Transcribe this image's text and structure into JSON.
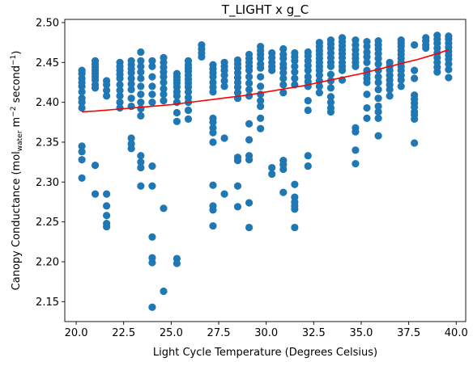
{
  "chart_data": {
    "type": "scatter",
    "title": "T_LIGHT x g_C",
    "xlabel": "Light Cycle Temperature (Degrees Celsius)",
    "ylabel": "Canopy Conductance (mol_water m^-2 second^-1)",
    "ylabel_parts": {
      "lead": "Canopy Conductance (mol",
      "sub": "water",
      "mid1": " m",
      "sup1": "−2",
      "mid2": " second",
      "sup2": "−1",
      "tail": ")"
    },
    "xlim": [
      19.4,
      40.5
    ],
    "ylim": [
      2.125,
      2.504
    ],
    "xticks": [
      20.0,
      22.5,
      25.0,
      27.5,
      30.0,
      32.5,
      35.0,
      37.5,
      40.0
    ],
    "xtick_labels": [
      "20.0",
      "22.5",
      "25.0",
      "27.5",
      "30.0",
      "32.5",
      "35.0",
      "37.5",
      "40.0"
    ],
    "yticks": [
      2.15,
      2.2,
      2.25,
      2.3,
      2.35,
      2.4,
      2.45,
      2.5
    ],
    "ytick_labels": [
      "2.15",
      "2.20",
      "2.25",
      "2.30",
      "2.35",
      "2.40",
      "2.45",
      "2.50"
    ],
    "grid": false,
    "legend": "none",
    "colors": {
      "points": "#1f77b4",
      "trend": "#ff0000",
      "axes": "#000000",
      "background": "#ffffff"
    },
    "points": [
      [
        20.3,
        2.44
      ],
      [
        20.3,
        2.436
      ],
      [
        20.3,
        2.43
      ],
      [
        20.3,
        2.425
      ],
      [
        20.3,
        2.42
      ],
      [
        20.3,
        2.413
      ],
      [
        20.3,
        2.405
      ],
      [
        20.3,
        2.4
      ],
      [
        20.3,
        2.393
      ],
      [
        20.3,
        2.345
      ],
      [
        20.3,
        2.338
      ],
      [
        20.3,
        2.328
      ],
      [
        20.3,
        2.305
      ],
      [
        21.0,
        2.452
      ],
      [
        21.0,
        2.448
      ],
      [
        21.0,
        2.444
      ],
      [
        21.0,
        2.44
      ],
      [
        21.0,
        2.436
      ],
      [
        21.0,
        2.432
      ],
      [
        21.0,
        2.428
      ],
      [
        21.0,
        2.422
      ],
      [
        21.0,
        2.418
      ],
      [
        21.0,
        2.321
      ],
      [
        21.0,
        2.285
      ],
      [
        21.6,
        2.427
      ],
      [
        21.6,
        2.422
      ],
      [
        21.6,
        2.415
      ],
      [
        21.6,
        2.408
      ],
      [
        21.6,
        2.285
      ],
      [
        21.6,
        2.27
      ],
      [
        21.6,
        2.258
      ],
      [
        21.6,
        2.248
      ],
      [
        21.6,
        2.244
      ],
      [
        22.3,
        2.45
      ],
      [
        22.3,
        2.445
      ],
      [
        22.3,
        2.44
      ],
      [
        22.3,
        2.435
      ],
      [
        22.3,
        2.43
      ],
      [
        22.3,
        2.422
      ],
      [
        22.3,
        2.415
      ],
      [
        22.3,
        2.408
      ],
      [
        22.3,
        2.4
      ],
      [
        22.3,
        2.393
      ],
      [
        22.9,
        2.452
      ],
      [
        22.9,
        2.447
      ],
      [
        22.9,
        2.442
      ],
      [
        22.9,
        2.437
      ],
      [
        22.9,
        2.43
      ],
      [
        22.9,
        2.423
      ],
      [
        22.9,
        2.416
      ],
      [
        22.9,
        2.405
      ],
      [
        22.9,
        2.395
      ],
      [
        22.9,
        2.355
      ],
      [
        22.9,
        2.348
      ],
      [
        22.9,
        2.342
      ],
      [
        23.4,
        2.463
      ],
      [
        23.4,
        2.452
      ],
      [
        23.4,
        2.445
      ],
      [
        23.4,
        2.438
      ],
      [
        23.4,
        2.43
      ],
      [
        23.4,
        2.42
      ],
      [
        23.4,
        2.41
      ],
      [
        23.4,
        2.4
      ],
      [
        23.4,
        2.392
      ],
      [
        23.4,
        2.383
      ],
      [
        23.4,
        2.333
      ],
      [
        23.4,
        2.325
      ],
      [
        23.4,
        2.318
      ],
      [
        23.4,
        2.295
      ],
      [
        24.0,
        2.452
      ],
      [
        24.0,
        2.445
      ],
      [
        24.0,
        2.432
      ],
      [
        24.0,
        2.42
      ],
      [
        24.0,
        2.41
      ],
      [
        24.0,
        2.4
      ],
      [
        24.0,
        2.32
      ],
      [
        24.0,
        2.295
      ],
      [
        24.0,
        2.231
      ],
      [
        24.0,
        2.205
      ],
      [
        24.0,
        2.199
      ],
      [
        24.0,
        2.143
      ],
      [
        24.6,
        2.456
      ],
      [
        24.6,
        2.45
      ],
      [
        24.6,
        2.444
      ],
      [
        24.6,
        2.438
      ],
      [
        24.6,
        2.432
      ],
      [
        24.6,
        2.425
      ],
      [
        24.6,
        2.417
      ],
      [
        24.6,
        2.41
      ],
      [
        24.6,
        2.402
      ],
      [
        24.6,
        2.267
      ],
      [
        24.6,
        2.163
      ],
      [
        25.3,
        2.436
      ],
      [
        25.3,
        2.432
      ],
      [
        25.3,
        2.428
      ],
      [
        25.3,
        2.424
      ],
      [
        25.3,
        2.419
      ],
      [
        25.3,
        2.413
      ],
      [
        25.3,
        2.408
      ],
      [
        25.3,
        2.4
      ],
      [
        25.3,
        2.387
      ],
      [
        25.3,
        2.376
      ],
      [
        25.3,
        2.204
      ],
      [
        25.3,
        2.198
      ],
      [
        25.9,
        2.452
      ],
      [
        25.9,
        2.447
      ],
      [
        25.9,
        2.443
      ],
      [
        25.9,
        2.439
      ],
      [
        25.9,
        2.434
      ],
      [
        25.9,
        2.429
      ],
      [
        25.9,
        2.424
      ],
      [
        25.9,
        2.419
      ],
      [
        25.9,
        2.413
      ],
      [
        25.9,
        2.406
      ],
      [
        25.9,
        2.4
      ],
      [
        25.9,
        2.39
      ],
      [
        25.9,
        2.379
      ],
      [
        26.6,
        2.472
      ],
      [
        26.6,
        2.467
      ],
      [
        26.6,
        2.462
      ],
      [
        26.6,
        2.457
      ],
      [
        27.2,
        2.447
      ],
      [
        27.2,
        2.442
      ],
      [
        27.2,
        2.437
      ],
      [
        27.2,
        2.432
      ],
      [
        27.2,
        2.425
      ],
      [
        27.2,
        2.419
      ],
      [
        27.2,
        2.413
      ],
      [
        27.2,
        2.38
      ],
      [
        27.2,
        2.375
      ],
      [
        27.2,
        2.368
      ],
      [
        27.2,
        2.362
      ],
      [
        27.2,
        2.35
      ],
      [
        27.2,
        2.296
      ],
      [
        27.2,
        2.27
      ],
      [
        27.2,
        2.265
      ],
      [
        27.2,
        2.245
      ],
      [
        27.8,
        2.45
      ],
      [
        27.8,
        2.445
      ],
      [
        27.8,
        2.44
      ],
      [
        27.8,
        2.434
      ],
      [
        27.8,
        2.427
      ],
      [
        27.8,
        2.42
      ],
      [
        27.8,
        2.355
      ],
      [
        27.8,
        2.285
      ],
      [
        28.5,
        2.453
      ],
      [
        28.5,
        2.448
      ],
      [
        28.5,
        2.443
      ],
      [
        28.5,
        2.437
      ],
      [
        28.5,
        2.431
      ],
      [
        28.5,
        2.425
      ],
      [
        28.5,
        2.419
      ],
      [
        28.5,
        2.412
      ],
      [
        28.5,
        2.405
      ],
      [
        28.5,
        2.331
      ],
      [
        28.5,
        2.327
      ],
      [
        28.5,
        2.295
      ],
      [
        28.5,
        2.269
      ],
      [
        29.1,
        2.46
      ],
      [
        29.1,
        2.455
      ],
      [
        29.1,
        2.45
      ],
      [
        29.1,
        2.445
      ],
      [
        29.1,
        2.44
      ],
      [
        29.1,
        2.432
      ],
      [
        29.1,
        2.424
      ],
      [
        29.1,
        2.416
      ],
      [
        29.1,
        2.408
      ],
      [
        29.1,
        2.373
      ],
      [
        29.1,
        2.353
      ],
      [
        29.1,
        2.333
      ],
      [
        29.1,
        2.328
      ],
      [
        29.1,
        2.274
      ],
      [
        29.1,
        2.243
      ],
      [
        29.7,
        2.47
      ],
      [
        29.7,
        2.465
      ],
      [
        29.7,
        2.46
      ],
      [
        29.7,
        2.455
      ],
      [
        29.7,
        2.448
      ],
      [
        29.7,
        2.443
      ],
      [
        29.7,
        2.432
      ],
      [
        29.7,
        2.42
      ],
      [
        29.7,
        2.41
      ],
      [
        29.7,
        2.402
      ],
      [
        29.7,
        2.395
      ],
      [
        29.7,
        2.38
      ],
      [
        29.7,
        2.367
      ],
      [
        30.3,
        2.462
      ],
      [
        30.3,
        2.456
      ],
      [
        30.3,
        2.45
      ],
      [
        30.3,
        2.445
      ],
      [
        30.3,
        2.44
      ],
      [
        30.3,
        2.318
      ],
      [
        30.3,
        2.31
      ],
      [
        30.9,
        2.467
      ],
      [
        30.9,
        2.46
      ],
      [
        30.9,
        2.455
      ],
      [
        30.9,
        2.448
      ],
      [
        30.9,
        2.443
      ],
      [
        30.9,
        2.437
      ],
      [
        30.9,
        2.43
      ],
      [
        30.9,
        2.422
      ],
      [
        30.9,
        2.412
      ],
      [
        30.9,
        2.327
      ],
      [
        30.9,
        2.322
      ],
      [
        30.9,
        2.316
      ],
      [
        30.9,
        2.287
      ],
      [
        31.5,
        2.462
      ],
      [
        31.5,
        2.457
      ],
      [
        31.5,
        2.452
      ],
      [
        31.5,
        2.445
      ],
      [
        31.5,
        2.438
      ],
      [
        31.5,
        2.43
      ],
      [
        31.5,
        2.422
      ],
      [
        31.5,
        2.297
      ],
      [
        31.5,
        2.281
      ],
      [
        31.5,
        2.275
      ],
      [
        31.5,
        2.27
      ],
      [
        31.5,
        2.266
      ],
      [
        31.5,
        2.243
      ],
      [
        32.2,
        2.463
      ],
      [
        32.2,
        2.458
      ],
      [
        32.2,
        2.452
      ],
      [
        32.2,
        2.446
      ],
      [
        32.2,
        2.44
      ],
      [
        32.2,
        2.432
      ],
      [
        32.2,
        2.426
      ],
      [
        32.2,
        2.42
      ],
      [
        32.2,
        2.402
      ],
      [
        32.2,
        2.39
      ],
      [
        32.2,
        2.333
      ],
      [
        32.2,
        2.32
      ],
      [
        32.8,
        2.475
      ],
      [
        32.8,
        2.47
      ],
      [
        32.8,
        2.465
      ],
      [
        32.8,
        2.46
      ],
      [
        32.8,
        2.455
      ],
      [
        32.8,
        2.45
      ],
      [
        32.8,
        2.445
      ],
      [
        32.8,
        2.44
      ],
      [
        32.8,
        2.434
      ],
      [
        32.8,
        2.427
      ],
      [
        32.8,
        2.42
      ],
      [
        32.8,
        2.412
      ],
      [
        33.4,
        2.478
      ],
      [
        33.4,
        2.473
      ],
      [
        33.4,
        2.468
      ],
      [
        33.4,
        2.462
      ],
      [
        33.4,
        2.456
      ],
      [
        33.4,
        2.45
      ],
      [
        33.4,
        2.445
      ],
      [
        33.4,
        2.435
      ],
      [
        33.4,
        2.427
      ],
      [
        33.4,
        2.418
      ],
      [
        33.4,
        2.407
      ],
      [
        33.4,
        2.4
      ],
      [
        33.4,
        2.393
      ],
      [
        33.4,
        2.388
      ],
      [
        34.0,
        2.481
      ],
      [
        34.0,
        2.476
      ],
      [
        34.0,
        2.471
      ],
      [
        34.0,
        2.466
      ],
      [
        34.0,
        2.461
      ],
      [
        34.0,
        2.456
      ],
      [
        34.0,
        2.45
      ],
      [
        34.0,
        2.445
      ],
      [
        34.0,
        2.44
      ],
      [
        34.0,
        2.428
      ],
      [
        34.7,
        2.478
      ],
      [
        34.7,
        2.472
      ],
      [
        34.7,
        2.466
      ],
      [
        34.7,
        2.46
      ],
      [
        34.7,
        2.455
      ],
      [
        34.7,
        2.45
      ],
      [
        34.7,
        2.445
      ],
      [
        34.7,
        2.368
      ],
      [
        34.7,
        2.363
      ],
      [
        34.7,
        2.34
      ],
      [
        34.7,
        2.323
      ],
      [
        35.3,
        2.476
      ],
      [
        35.3,
        2.47
      ],
      [
        35.3,
        2.463
      ],
      [
        35.3,
        2.457
      ],
      [
        35.3,
        2.45
      ],
      [
        35.3,
        2.44
      ],
      [
        35.3,
        2.435
      ],
      [
        35.3,
        2.43
      ],
      [
        35.3,
        2.425
      ],
      [
        35.3,
        2.41
      ],
      [
        35.3,
        2.393
      ],
      [
        35.3,
        2.38
      ],
      [
        35.9,
        2.477
      ],
      [
        35.9,
        2.472
      ],
      [
        35.9,
        2.467
      ],
      [
        35.9,
        2.461
      ],
      [
        35.9,
        2.455
      ],
      [
        35.9,
        2.448
      ],
      [
        35.9,
        2.44
      ],
      [
        35.9,
        2.432
      ],
      [
        35.9,
        2.425
      ],
      [
        35.9,
        2.416
      ],
      [
        35.9,
        2.405
      ],
      [
        35.9,
        2.395
      ],
      [
        35.9,
        2.388
      ],
      [
        35.9,
        2.38
      ],
      [
        35.9,
        2.358
      ],
      [
        36.5,
        2.45
      ],
      [
        36.5,
        2.445
      ],
      [
        36.5,
        2.44
      ],
      [
        36.5,
        2.434
      ],
      [
        36.5,
        2.428
      ],
      [
        36.5,
        2.422
      ],
      [
        36.5,
        2.416
      ],
      [
        36.5,
        2.408
      ],
      [
        37.1,
        2.478
      ],
      [
        37.1,
        2.474
      ],
      [
        37.1,
        2.47
      ],
      [
        37.1,
        2.465
      ],
      [
        37.1,
        2.46
      ],
      [
        37.1,
        2.455
      ],
      [
        37.1,
        2.45
      ],
      [
        37.1,
        2.445
      ],
      [
        37.1,
        2.44
      ],
      [
        37.1,
        2.434
      ],
      [
        37.1,
        2.428
      ],
      [
        37.1,
        2.42
      ],
      [
        37.8,
        2.472
      ],
      [
        37.8,
        2.44
      ],
      [
        37.8,
        2.43
      ],
      [
        37.8,
        2.409
      ],
      [
        37.8,
        2.404
      ],
      [
        37.8,
        2.399
      ],
      [
        37.8,
        2.394
      ],
      [
        37.8,
        2.388
      ],
      [
        37.8,
        2.384
      ],
      [
        37.8,
        2.379
      ],
      [
        37.8,
        2.349
      ],
      [
        38.4,
        2.481
      ],
      [
        38.4,
        2.477
      ],
      [
        38.4,
        2.472
      ],
      [
        38.4,
        2.468
      ],
      [
        39.0,
        2.484
      ],
      [
        39.0,
        2.479
      ],
      [
        39.0,
        2.474
      ],
      [
        39.0,
        2.468
      ],
      [
        39.0,
        2.462
      ],
      [
        39.0,
        2.456
      ],
      [
        39.0,
        2.45
      ],
      [
        39.0,
        2.444
      ],
      [
        39.0,
        2.438
      ],
      [
        39.6,
        2.483
      ],
      [
        39.6,
        2.479
      ],
      [
        39.6,
        2.474
      ],
      [
        39.6,
        2.469
      ],
      [
        39.6,
        2.464
      ],
      [
        39.6,
        2.459
      ],
      [
        39.6,
        2.454
      ],
      [
        39.6,
        2.448
      ],
      [
        39.6,
        2.441
      ],
      [
        39.6,
        2.431
      ]
    ],
    "trend_line": {
      "x": [
        20.3,
        21.0,
        22.0,
        23.0,
        24.0,
        25.0,
        26.0,
        27.0,
        28.0,
        29.0,
        30.0,
        31.0,
        32.0,
        33.0,
        34.0,
        35.0,
        36.0,
        37.0,
        38.0,
        39.0,
        39.6
      ],
      "y": [
        2.388,
        2.389,
        2.391,
        2.393,
        2.395,
        2.397,
        2.4,
        2.403,
        2.406,
        2.409,
        2.413,
        2.417,
        2.421,
        2.426,
        2.431,
        2.436,
        2.442,
        2.448,
        2.454,
        2.461,
        2.466
      ]
    }
  }
}
